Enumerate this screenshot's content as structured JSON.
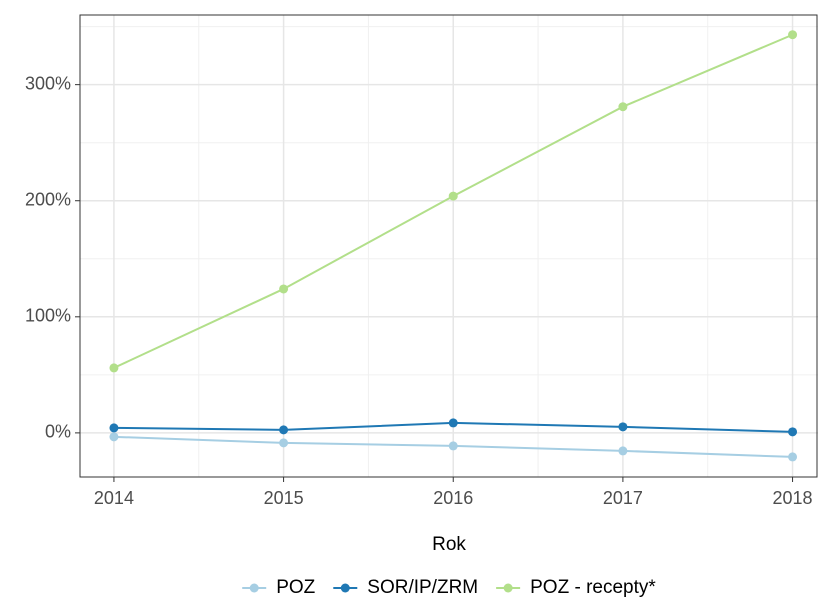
{
  "chart_data": {
    "type": "line",
    "x_label": "Rok",
    "x": [
      2014,
      2015,
      2016,
      2017,
      2018
    ],
    "series": [
      {
        "name": "POZ",
        "color": "#a6cee3",
        "values": [
          -3.4,
          -8.6,
          -11.2,
          -15.5,
          -20.7
        ]
      },
      {
        "name": "SOR/IP/ZRM",
        "color": "#1f78b4",
        "values": [
          4.3,
          2.6,
          8.6,
          5.2,
          0.9
        ]
      },
      {
        "name": "POZ - recepty*",
        "color": "#b2df8a",
        "values": [
          56,
          124,
          204,
          281,
          343
        ]
      }
    ],
    "xlim": [
      2013.8,
      2018.15
    ],
    "xticks": [
      2014,
      2015,
      2016,
      2017,
      2018
    ],
    "ylim": [
      -38,
      360
    ],
    "yticks": [
      {
        "value": 0,
        "label": "0%"
      },
      {
        "value": 100,
        "label": "100%"
      },
      {
        "value": 200,
        "label": "200%"
      },
      {
        "value": 300,
        "label": "300%"
      }
    ],
    "grid": true,
    "legend": "bottom"
  }
}
